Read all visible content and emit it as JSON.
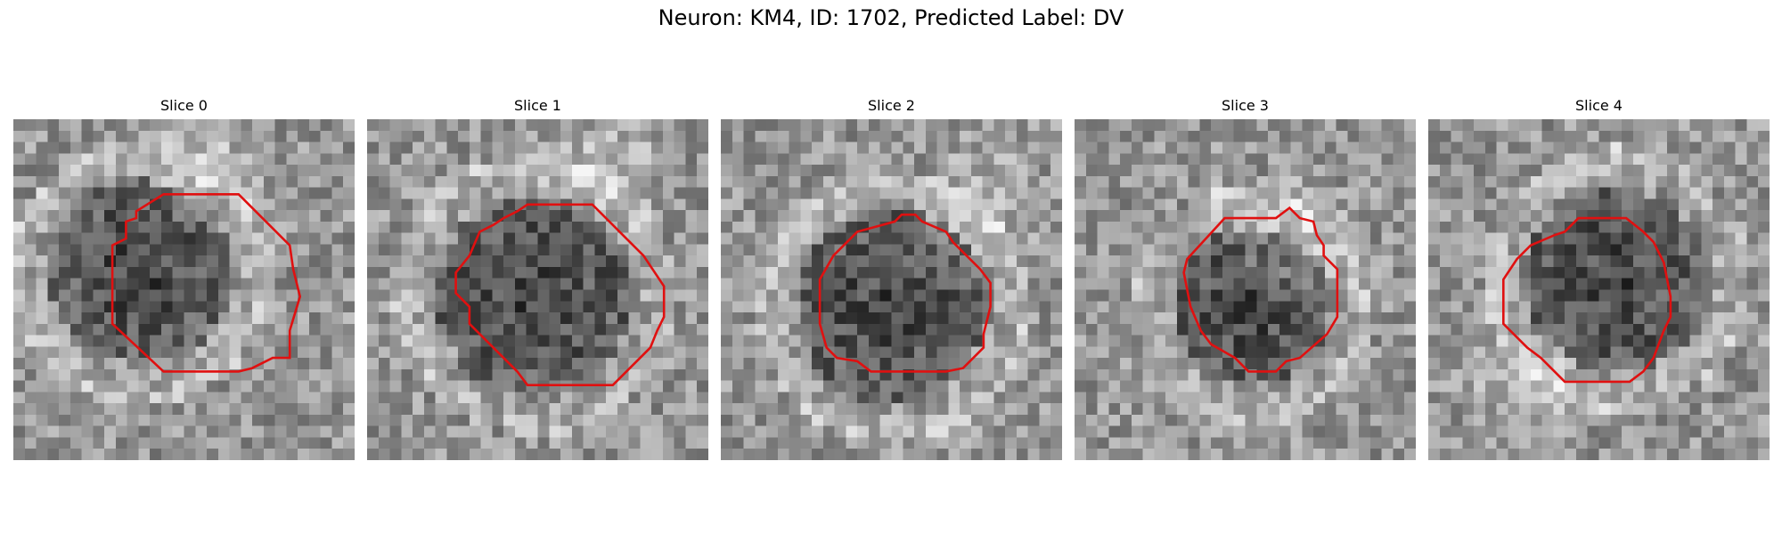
{
  "figure": {
    "title": "Neuron: KM4, ID: 1702, Predicted Label: DV"
  },
  "panels": [
    {
      "title": "Slice 0",
      "cells_per_side": 30,
      "seed": 11,
      "dark_center": [
        0.37,
        0.45
      ],
      "dark_radius": 0.27,
      "bright_region": [
        0.55,
        0.12
      ],
      "contour": [
        [
          0.44,
          0.22
        ],
        [
          0.66,
          0.22
        ],
        [
          0.81,
          0.37
        ],
        [
          0.82,
          0.44
        ],
        [
          0.84,
          0.52
        ],
        [
          0.81,
          0.62
        ],
        [
          0.81,
          0.7
        ],
        [
          0.76,
          0.7
        ],
        [
          0.7,
          0.73
        ],
        [
          0.66,
          0.74
        ],
        [
          0.44,
          0.74
        ],
        [
          0.29,
          0.6
        ],
        [
          0.29,
          0.37
        ],
        [
          0.33,
          0.35
        ],
        [
          0.33,
          0.3
        ],
        [
          0.36,
          0.29
        ],
        [
          0.36,
          0.27
        ]
      ]
    },
    {
      "title": "Slice 1",
      "cells_per_side": 30,
      "seed": 23,
      "dark_center": [
        0.49,
        0.52
      ],
      "dark_radius": 0.29,
      "bright_region": [
        0.7,
        0.15
      ],
      "contour": [
        [
          0.44,
          0.27
        ],
        [
          0.47,
          0.25
        ],
        [
          0.66,
          0.25
        ],
        [
          0.74,
          0.33
        ],
        [
          0.77,
          0.36
        ],
        [
          0.81,
          0.4
        ],
        [
          0.87,
          0.49
        ],
        [
          0.87,
          0.58
        ],
        [
          0.85,
          0.62
        ],
        [
          0.83,
          0.67
        ],
        [
          0.72,
          0.78
        ],
        [
          0.47,
          0.78
        ],
        [
          0.44,
          0.74
        ],
        [
          0.3,
          0.6
        ],
        [
          0.3,
          0.55
        ],
        [
          0.26,
          0.51
        ],
        [
          0.26,
          0.45
        ],
        [
          0.3,
          0.4
        ],
        [
          0.33,
          0.33
        ],
        [
          0.37,
          0.31
        ],
        [
          0.4,
          0.29
        ]
      ]
    },
    {
      "title": "Slice 2",
      "cells_per_side": 30,
      "seed": 37,
      "dark_center": [
        0.5,
        0.55
      ],
      "dark_radius": 0.28,
      "bright_region": [
        0.75,
        0.25
      ],
      "contour": [
        [
          0.4,
          0.33
        ],
        [
          0.51,
          0.3
        ],
        [
          0.53,
          0.28
        ],
        [
          0.57,
          0.28
        ],
        [
          0.59,
          0.3
        ],
        [
          0.66,
          0.33
        ],
        [
          0.68,
          0.36
        ],
        [
          0.76,
          0.44
        ],
        [
          0.79,
          0.48
        ],
        [
          0.79,
          0.55
        ],
        [
          0.77,
          0.63
        ],
        [
          0.77,
          0.67
        ],
        [
          0.74,
          0.7
        ],
        [
          0.71,
          0.73
        ],
        [
          0.66,
          0.74
        ],
        [
          0.44,
          0.74
        ],
        [
          0.4,
          0.71
        ],
        [
          0.34,
          0.7
        ],
        [
          0.31,
          0.67
        ],
        [
          0.29,
          0.6
        ],
        [
          0.29,
          0.47
        ],
        [
          0.33,
          0.4
        ],
        [
          0.37,
          0.36
        ]
      ]
    },
    {
      "title": "Slice 3",
      "cells_per_side": 30,
      "seed": 53,
      "dark_center": [
        0.52,
        0.55
      ],
      "dark_radius": 0.23,
      "bright_region": [
        0.65,
        0.35
      ],
      "contour": [
        [
          0.44,
          0.29
        ],
        [
          0.59,
          0.29
        ],
        [
          0.63,
          0.26
        ],
        [
          0.66,
          0.29
        ],
        [
          0.7,
          0.3
        ],
        [
          0.71,
          0.34
        ],
        [
          0.73,
          0.37
        ],
        [
          0.73,
          0.4
        ],
        [
          0.77,
          0.44
        ],
        [
          0.77,
          0.58
        ],
        [
          0.74,
          0.63
        ],
        [
          0.66,
          0.7
        ],
        [
          0.62,
          0.71
        ],
        [
          0.59,
          0.74
        ],
        [
          0.51,
          0.74
        ],
        [
          0.47,
          0.7
        ],
        [
          0.4,
          0.66
        ],
        [
          0.37,
          0.62
        ],
        [
          0.34,
          0.55
        ],
        [
          0.32,
          0.45
        ],
        [
          0.33,
          0.41
        ]
      ]
    },
    {
      "title": "Slice 4",
      "cells_per_side": 30,
      "seed": 71,
      "dark_center": [
        0.55,
        0.47
      ],
      "dark_radius": 0.27,
      "bright_region": [
        0.3,
        0.8
      ],
      "contour": [
        [
          0.37,
          0.34
        ],
        [
          0.4,
          0.33
        ],
        [
          0.44,
          0.29
        ],
        [
          0.58,
          0.29
        ],
        [
          0.63,
          0.33
        ],
        [
          0.66,
          0.36
        ],
        [
          0.69,
          0.42
        ],
        [
          0.7,
          0.47
        ],
        [
          0.71,
          0.52
        ],
        [
          0.71,
          0.58
        ],
        [
          0.69,
          0.62
        ],
        [
          0.66,
          0.7
        ],
        [
          0.63,
          0.74
        ],
        [
          0.59,
          0.77
        ],
        [
          0.4,
          0.77
        ],
        [
          0.37,
          0.74
        ],
        [
          0.33,
          0.7
        ],
        [
          0.29,
          0.67
        ],
        [
          0.22,
          0.6
        ],
        [
          0.22,
          0.47
        ],
        [
          0.26,
          0.41
        ],
        [
          0.3,
          0.37
        ]
      ]
    }
  ],
  "colors": {
    "contour": "#e01010",
    "background": "#ffffff"
  }
}
